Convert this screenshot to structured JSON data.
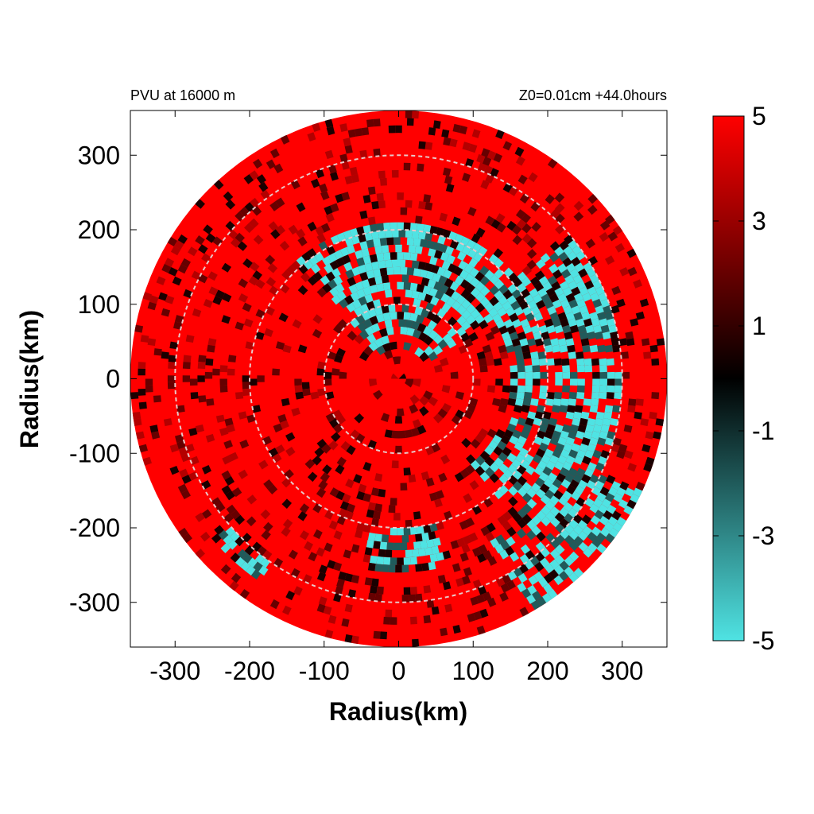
{
  "chart_data": {
    "type": "heatmap",
    "title_left": "PVU at 16000 m",
    "title_right": "Z0=0.01cm  +44.0hours",
    "xlabel": "Radius(km)",
    "ylabel": "Radius(km)",
    "xlim": [
      -360,
      360
    ],
    "ylim": [
      -360,
      360
    ],
    "xticks": [
      -300,
      -200,
      -100,
      0,
      100,
      200,
      300
    ],
    "yticks": [
      -300,
      -200,
      -100,
      0,
      100,
      200,
      300
    ],
    "range_rings_km": [
      100,
      200,
      300
    ],
    "domain_radius_km": 360,
    "colorbar": {
      "min": -5,
      "max": 5,
      "ticks": [
        5,
        3,
        1,
        -1,
        -3,
        -5
      ],
      "colors": {
        "low": "#4fe3e3",
        "mid": "#000000",
        "high": "#ff0000"
      }
    },
    "features": [
      {
        "kind": "negative-pv-arc",
        "r_range_km": [
          40,
          210
        ],
        "theta_range_deg": [
          30,
          130
        ],
        "value": -5
      },
      {
        "kind": "negative-pv-arc",
        "r_range_km": [
          150,
          300
        ],
        "theta_range_deg": [
          -50,
          40
        ],
        "value": -5
      },
      {
        "kind": "negative-pv-arc",
        "r_range_km": [
          250,
          360
        ],
        "theta_range_deg": [
          -60,
          -25
        ],
        "value": -5
      },
      {
        "kind": "negative-pv-arc",
        "r_range_km": [
          200,
          260
        ],
        "theta_range_deg": [
          -100,
          -75
        ],
        "value": -5
      },
      {
        "kind": "negative-pv-arc",
        "r_range_km": [
          300,
          330
        ],
        "theta_range_deg": [
          -140,
          -125
        ],
        "value": -5
      },
      {
        "kind": "positive-background",
        "value": 5
      }
    ]
  }
}
